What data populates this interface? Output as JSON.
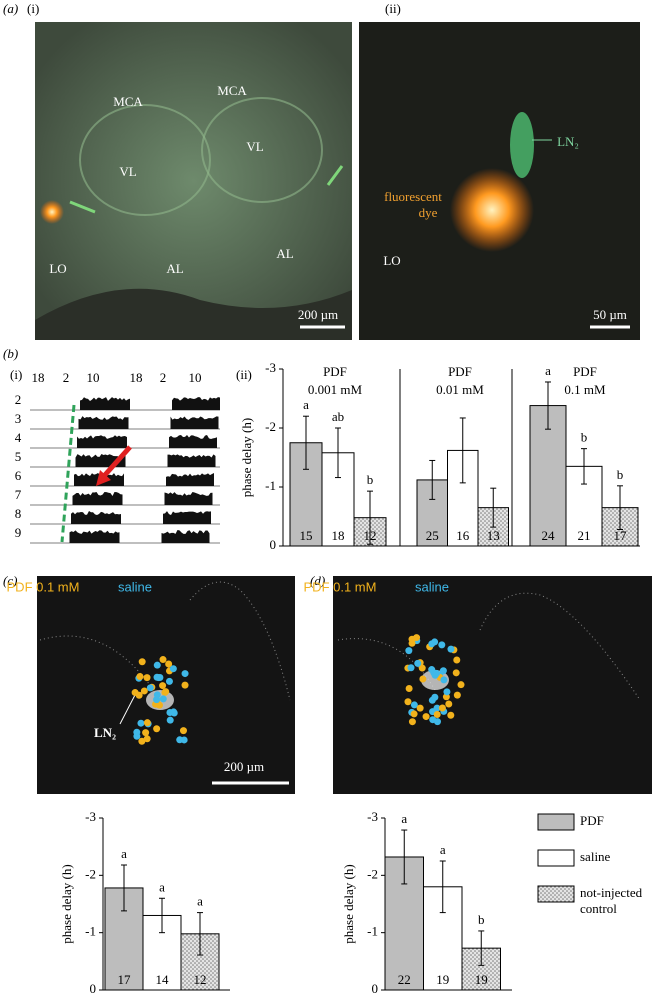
{
  "panel_labels": {
    "a": "(a)",
    "a_i": "(i)",
    "a_ii": "(ii)",
    "b": "(b)",
    "b_i": "(i)",
    "b_ii": "(ii)",
    "c": "(c)",
    "d": "(d)"
  },
  "images": [
    {
      "labels": [
        "MCA",
        "MCA",
        "VL",
        "VL",
        "LO",
        "AL",
        "AL",
        "200 µm"
      ]
    },
    {
      "labels": [
        "LN₂",
        "fluorescent",
        "dye",
        "LO",
        "50 µm"
      ]
    },
    {
      "labels": [
        "PDF 0.1 mM",
        "saline",
        "LN₂",
        "200 µm"
      ],
      "dot_colors": [
        "#f2b21c",
        "#3fb8e8"
      ]
    },
    {
      "labels": [
        "PDF 0.1 mM",
        "saline"
      ],
      "dot_colors": [
        "#f2b21c",
        "#3fb8e8"
      ]
    }
  ],
  "actogram": {
    "hours": [
      "18",
      "2",
      "10",
      "18",
      "2",
      "10"
    ],
    "rows": [
      "2",
      "3",
      "4",
      "5",
      "6",
      "7",
      "8",
      "9"
    ]
  },
  "legend": {
    "items": [
      {
        "name": "PDF",
        "color": "#bdbdbd",
        "hatched": false
      },
      {
        "name": "saline",
        "color": "#ffffff",
        "hatched": false
      },
      {
        "name": "not-injected",
        "name2": "control",
        "color": "#e4e4e4",
        "hatched": true
      }
    ]
  },
  "chart_data": [
    {
      "type": "bar",
      "title": "PDF",
      "subtitle": "0.001 mM",
      "y_label": "phase delay (h)",
      "values": [
        -1.75,
        -1.58,
        -0.48
      ],
      "errors": [
        0.45,
        0.42,
        0.45
      ],
      "letters": [
        "a",
        "ab",
        "b"
      ],
      "n": [
        "15",
        "18",
        "12"
      ],
      "ylim": [
        0,
        -3
      ],
      "yticks": [
        0,
        -1,
        -2,
        -3
      ]
    },
    {
      "type": "bar",
      "title": "PDF",
      "subtitle": "0.01 mM",
      "values": [
        -1.12,
        -1.62,
        -0.65
      ],
      "errors": [
        0.33,
        0.55,
        0.33
      ],
      "n": [
        "25",
        "16",
        "13"
      ],
      "ylim": [
        0,
        -3
      ]
    },
    {
      "type": "bar",
      "title": "PDF",
      "subtitle": "0.1 mM",
      "values": [
        -2.38,
        -1.35,
        -0.65
      ],
      "errors": [
        0.4,
        0.3,
        0.37
      ],
      "letters": [
        "a",
        "b",
        "b"
      ],
      "n": [
        "24",
        "21",
        "17"
      ],
      "ylim": [
        0,
        -3
      ]
    },
    {
      "type": "bar",
      "y_label": "phase delay (h)",
      "values": [
        -1.78,
        -1.3,
        -0.98
      ],
      "errors": [
        0.4,
        0.3,
        0.37
      ],
      "letters": [
        "a",
        "a",
        "a"
      ],
      "n": [
        "17",
        "14",
        "12"
      ],
      "ylim": [
        0,
        -3
      ],
      "yticks": [
        0,
        -1,
        -2,
        -3
      ]
    },
    {
      "type": "bar",
      "y_label": "phase delay (h)",
      "values": [
        -2.32,
        -1.8,
        -0.73
      ],
      "errors": [
        0.47,
        0.45,
        0.3
      ],
      "letters": [
        "a",
        "a",
        "b"
      ],
      "n": [
        "22",
        "19",
        "19"
      ],
      "ylim": [
        0,
        -3
      ],
      "yticks": [
        0,
        -1,
        -2,
        -3
      ]
    }
  ]
}
